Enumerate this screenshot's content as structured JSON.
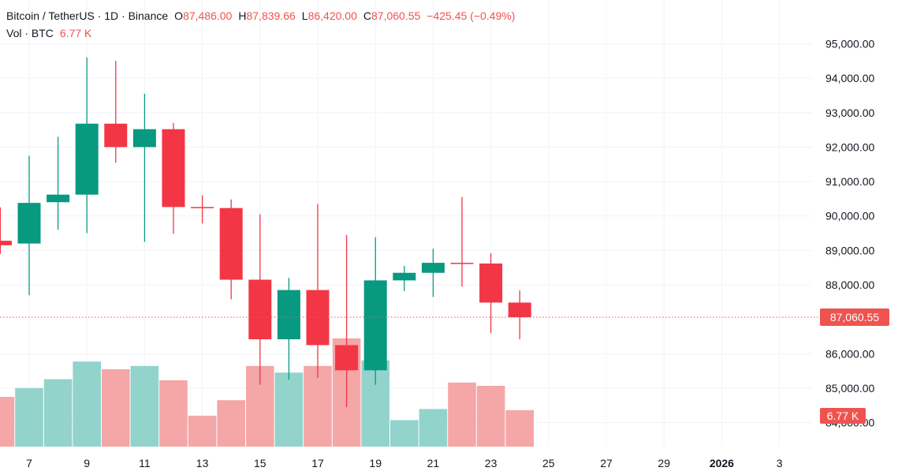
{
  "header": {
    "symbol": "Bitcoin / TetherUS · 1D · Binance",
    "o_label": "O",
    "o_value": "87,486.00",
    "h_label": "H",
    "h_value": "87,839.66",
    "l_label": "L",
    "l_value": "86,420.00",
    "c_label": "C",
    "c_value": "87,060.55",
    "change": "−425.45 (−0.49%)",
    "vol_label": "Vol · BTC",
    "vol_value": "6.77 K"
  },
  "colors": {
    "up": "#089981",
    "down": "#f23645",
    "up_volume": "#92d3cc",
    "down_volume": "#f5a6a7",
    "price_line": "#ef5350",
    "grid": "#f0f3fa"
  },
  "chart_data": {
    "type": "candlestick",
    "title": "Bitcoin / TetherUS · 1D · Binance",
    "y_ticks": [
      "95,000.00",
      "94,000.00",
      "93,000.00",
      "92,000.00",
      "91,000.00",
      "90,000.00",
      "89,000.00",
      "88,000.00",
      "86,000.00",
      "85,000.00",
      "84,000.00"
    ],
    "x_ticks": [
      "7",
      "9",
      "11",
      "13",
      "15",
      "17",
      "19",
      "21",
      "23",
      "25",
      "27",
      "29",
      "2026",
      "3"
    ],
    "ylim": [
      83900,
      95400
    ],
    "last_price": 87060.55,
    "last_price_label": "87,060.55",
    "last_volume_label": "6.77 K",
    "grid": true,
    "candles": [
      {
        "day": 6,
        "open": 89280,
        "high": 90250,
        "low": 88900,
        "close": 89150
      },
      {
        "day": 7,
        "open": 89200,
        "high": 91750,
        "low": 87700,
        "close": 90380
      },
      {
        "day": 8,
        "open": 90400,
        "high": 92300,
        "low": 89600,
        "close": 90620
      },
      {
        "day": 9,
        "open": 90620,
        "high": 94600,
        "low": 89500,
        "close": 92680
      },
      {
        "day": 10,
        "open": 92680,
        "high": 94500,
        "low": 91550,
        "close": 92000
      },
      {
        "day": 11,
        "open": 92000,
        "high": 93550,
        "low": 89250,
        "close": 92520
      },
      {
        "day": 12,
        "open": 92520,
        "high": 92700,
        "low": 89480,
        "close": 90260
      },
      {
        "day": 13,
        "open": 90260,
        "high": 90600,
        "low": 89780,
        "close": 90230
      },
      {
        "day": 14,
        "open": 90230,
        "high": 90480,
        "low": 87580,
        "close": 88150
      },
      {
        "day": 15,
        "open": 88150,
        "high": 90050,
        "low": 85100,
        "close": 86420
      },
      {
        "day": 16,
        "open": 86420,
        "high": 88200,
        "low": 85250,
        "close": 87850
      },
      {
        "day": 17,
        "open": 87850,
        "high": 90350,
        "low": 85300,
        "close": 86250
      },
      {
        "day": 18,
        "open": 86250,
        "high": 89450,
        "low": 84450,
        "close": 85520
      },
      {
        "day": 19,
        "open": 85520,
        "high": 89380,
        "low": 85100,
        "close": 88130
      },
      {
        "day": 20,
        "open": 88130,
        "high": 88550,
        "low": 87820,
        "close": 88350
      },
      {
        "day": 21,
        "open": 88350,
        "high": 89050,
        "low": 87650,
        "close": 88640
      },
      {
        "day": 22,
        "open": 88640,
        "high": 90550,
        "low": 87950,
        "close": 88620
      },
      {
        "day": 23,
        "open": 88620,
        "high": 88920,
        "low": 86600,
        "close": 87486
      },
      {
        "day": 24,
        "open": 87486,
        "high": 87839.66,
        "low": 86420,
        "close": 87060.55
      }
    ],
    "volume": [
      {
        "day": 6,
        "value": 0.45,
        "up": false
      },
      {
        "day": 7,
        "value": 0.53,
        "up": true
      },
      {
        "day": 8,
        "value": 0.61,
        "up": true
      },
      {
        "day": 9,
        "value": 0.77,
        "up": true
      },
      {
        "day": 10,
        "value": 0.7,
        "up": false
      },
      {
        "day": 11,
        "value": 0.73,
        "up": true
      },
      {
        "day": 12,
        "value": 0.6,
        "up": false
      },
      {
        "day": 13,
        "value": 0.28,
        "up": false
      },
      {
        "day": 14,
        "value": 0.42,
        "up": false
      },
      {
        "day": 15,
        "value": 0.73,
        "up": false
      },
      {
        "day": 16,
        "value": 0.67,
        "up": true
      },
      {
        "day": 17,
        "value": 0.73,
        "up": false
      },
      {
        "day": 18,
        "value": 0.98,
        "up": false
      },
      {
        "day": 19,
        "value": 0.78,
        "up": true
      },
      {
        "day": 20,
        "value": 0.24,
        "up": true
      },
      {
        "day": 21,
        "value": 0.34,
        "up": true
      },
      {
        "day": 22,
        "value": 0.58,
        "up": false
      },
      {
        "day": 23,
        "value": 0.55,
        "up": false
      },
      {
        "day": 24,
        "value": 0.33,
        "up": false
      }
    ]
  }
}
